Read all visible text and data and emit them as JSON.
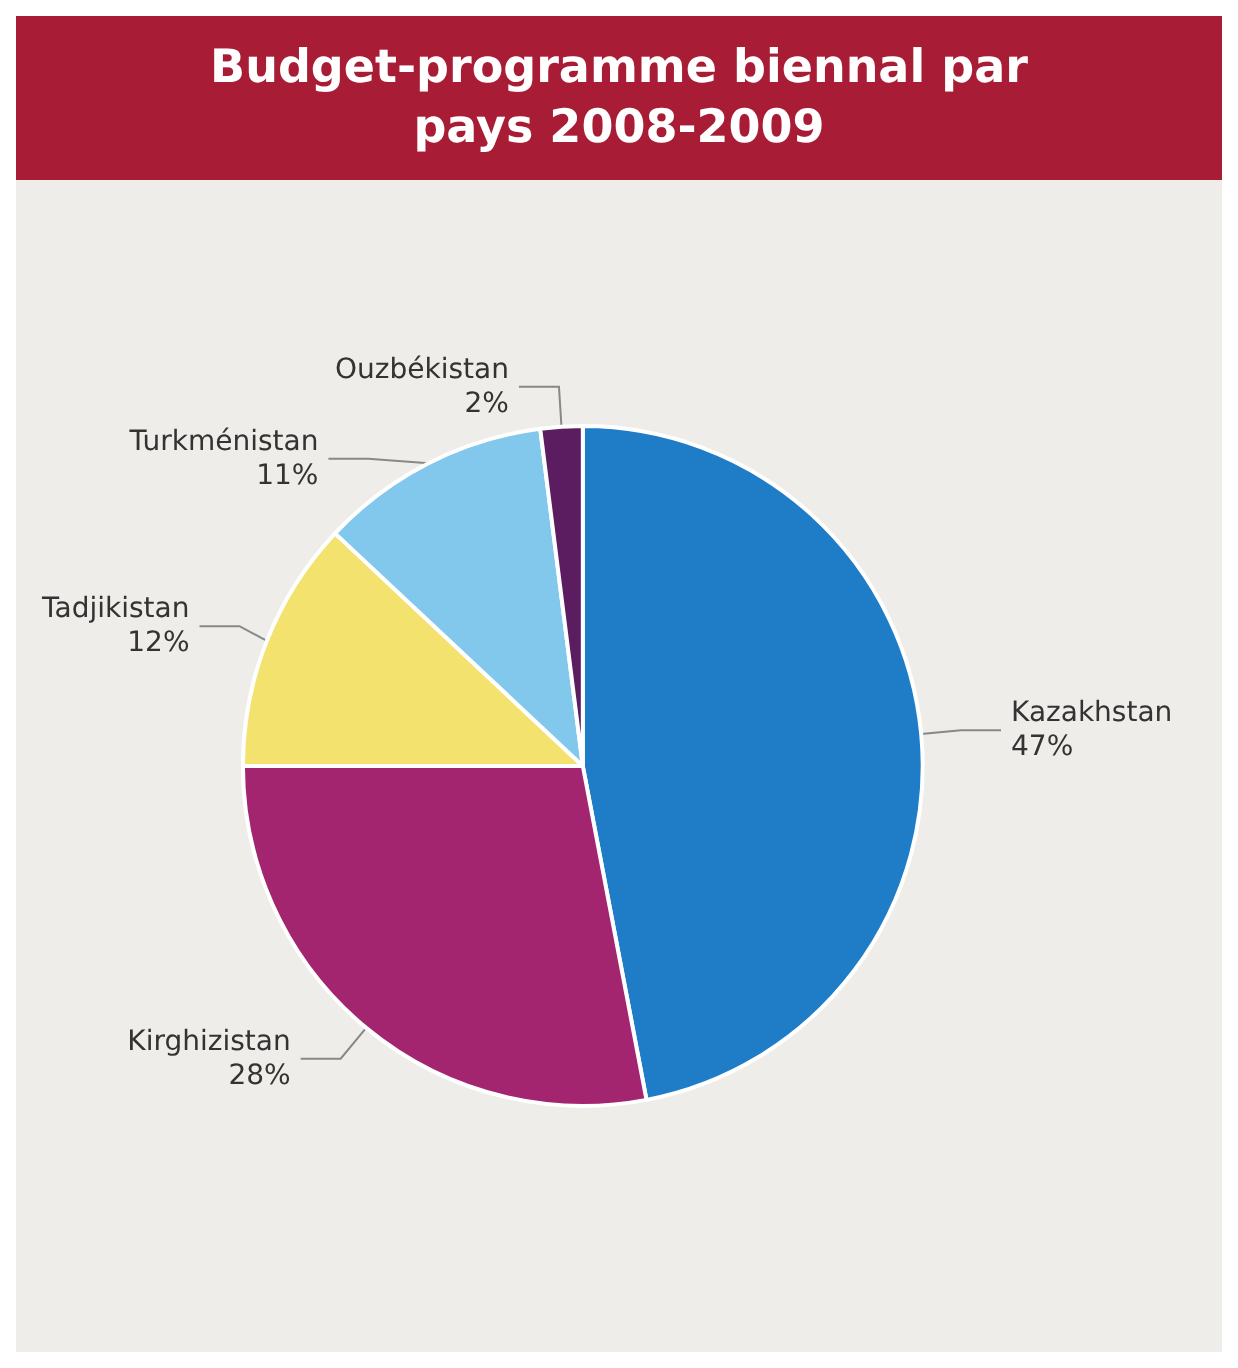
{
  "chart_data": {
    "type": "pie",
    "title": "Budget-programme biennal par pays 2008-2009",
    "categories": [
      "Kazakhstan",
      "Kirghizistan",
      "Tadjikistan",
      "Turkménistan",
      "Ouzbékistan"
    ],
    "values": [
      47,
      28,
      12,
      11,
      2
    ],
    "value_labels": [
      "47%",
      "28%",
      "12%",
      "11%",
      "2%"
    ],
    "colors": [
      "#1f7cc6",
      "#a3246f",
      "#f3e26e",
      "#82c7ec",
      "#5b1d5f"
    ],
    "legend": false
  }
}
